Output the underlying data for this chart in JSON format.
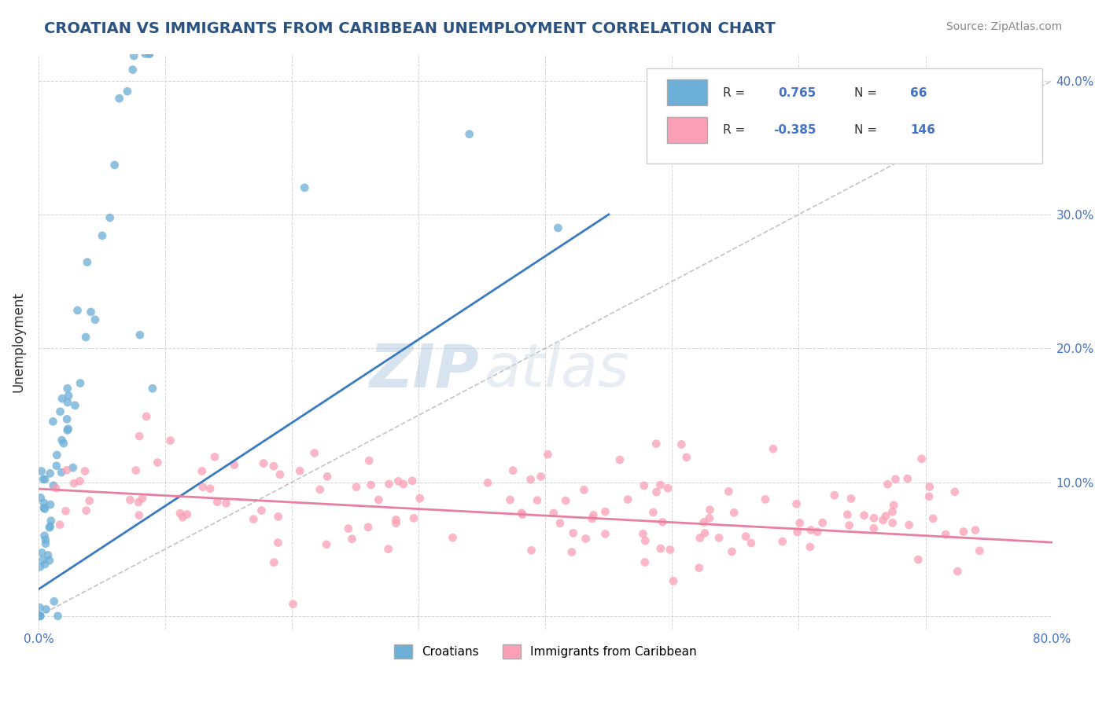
{
  "title": "CROATIAN VS IMMIGRANTS FROM CARIBBEAN UNEMPLOYMENT CORRELATION CHART",
  "source_text": "Source: ZipAtlas.com",
  "xlabel": "",
  "ylabel": "Unemployment",
  "xlim": [
    0.0,
    0.8
  ],
  "ylim": [
    -0.01,
    0.42
  ],
  "xticks": [
    0.0,
    0.1,
    0.2,
    0.3,
    0.4,
    0.5,
    0.6,
    0.7,
    0.8
  ],
  "xticklabels": [
    "0.0%",
    "",
    "",
    "",
    "",
    "",
    "",
    "",
    "80.0%"
  ],
  "yticks": [
    0.0,
    0.1,
    0.2,
    0.3,
    0.4
  ],
  "yticklabels": [
    "",
    "10.0%",
    "20.0%",
    "30.0%",
    "40.0%"
  ],
  "blue_color": "#6baed6",
  "pink_color": "#fa9fb5",
  "blue_R": 0.765,
  "blue_N": 66,
  "pink_R": -0.385,
  "pink_N": 146,
  "legend_label_blue": "Croatians",
  "legend_label_pink": "Immigrants from Caribbean",
  "background_color": "#ffffff",
  "grid_color": "#cccccc",
  "title_color": "#2c5282",
  "tick_color": "#4472c4",
  "seed": 42,
  "blue_line_x": [
    0.0,
    0.45
  ],
  "blue_line_y": [
    0.02,
    0.3
  ],
  "pink_line_x": [
    0.0,
    0.8
  ],
  "pink_line_y": [
    0.095,
    0.055
  ],
  "ref_line_x": [
    0.0,
    0.8
  ],
  "ref_line_y": [
    0.0,
    0.4
  ]
}
